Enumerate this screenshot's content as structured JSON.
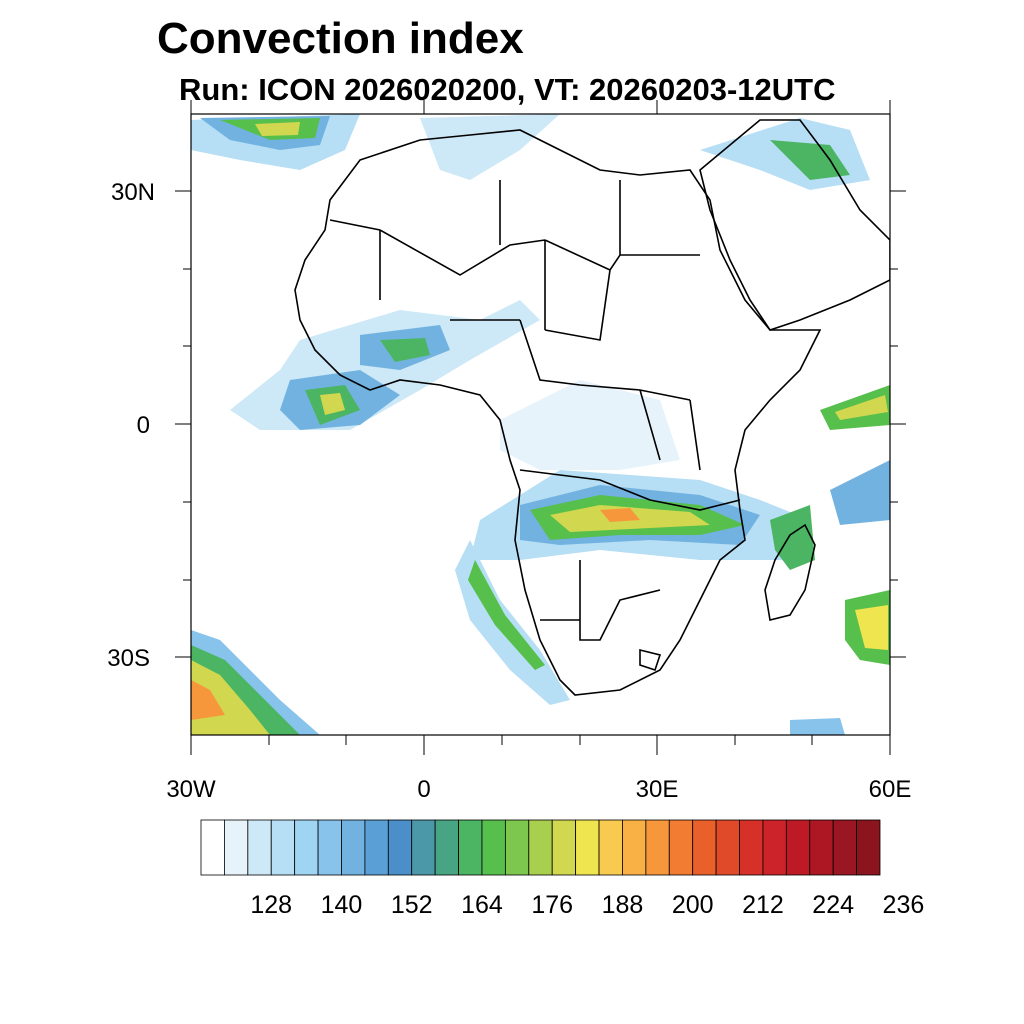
{
  "title": "Convection index",
  "subtitle": "Run: ICON 2026020200,  VT: 20260203-12UTC",
  "map": {
    "lon_range": [
      -30,
      60
    ],
    "lat_range": [
      -40,
      40
    ],
    "y_tick_labels": [
      {
        "lat": 30,
        "label": "30N"
      },
      {
        "lat": 0,
        "label": "0"
      },
      {
        "lat": -30,
        "label": "30S"
      }
    ],
    "x_tick_labels": [
      {
        "lon": -30,
        "label": "30W"
      },
      {
        "lon": 0,
        "label": "0"
      },
      {
        "lon": 30,
        "label": "30E"
      },
      {
        "lon": 60,
        "label": "60E"
      }
    ]
  },
  "colorbar": {
    "colors": [
      "#ffffff",
      "#e6f3fb",
      "#cde8f6",
      "#b6def4",
      "#9fd4f2",
      "#88c3eb",
      "#72b2e1",
      "#5a9fd6",
      "#4a8fc9",
      "#4b99a8",
      "#48a583",
      "#4bb563",
      "#57bf4b",
      "#7ec74e",
      "#a8cf4e",
      "#d1d84f",
      "#efe54f",
      "#f8cb50",
      "#f9b146",
      "#f7973b",
      "#f17c32",
      "#e9602a",
      "#e04a29",
      "#d63029",
      "#cc2229",
      "#be1a26",
      "#ad1724",
      "#9a1622",
      "#8a151f"
    ],
    "tick_labels": [
      "128",
      "140",
      "152",
      "164",
      "176",
      "188",
      "200",
      "212",
      "224",
      "236"
    ]
  }
}
